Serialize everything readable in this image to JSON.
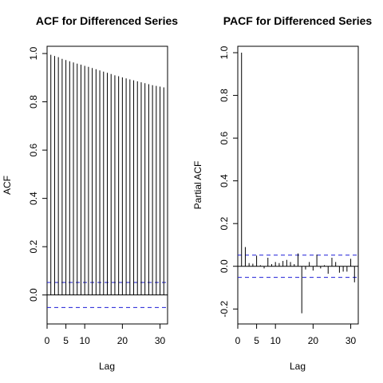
{
  "chart_data": [
    {
      "type": "bar",
      "title": "ACF for Differenced Series",
      "xlabel": "Lag",
      "ylabel": "ACF",
      "xlim": [
        0,
        32
      ],
      "ylim": [
        -0.12,
        1.03
      ],
      "x_ticks": [
        0,
        5,
        10,
        20,
        30
      ],
      "y_ticks": [
        0.0,
        0.2,
        0.4,
        0.6,
        0.8,
        1.0
      ],
      "x_tick_labels": [
        "0",
        "5",
        "10",
        "20",
        "30"
      ],
      "y_tick_labels": [
        "0.0",
        "0.2",
        "0.4",
        "0.6",
        "0.8",
        "1.0"
      ],
      "ci": [
        0.052,
        -0.052
      ],
      "lags": [
        1,
        2,
        3,
        4,
        5,
        6,
        7,
        8,
        9,
        10,
        11,
        12,
        13,
        14,
        15,
        16,
        17,
        18,
        19,
        20,
        21,
        22,
        23,
        24,
        25,
        26,
        27,
        28,
        29,
        30,
        31
      ],
      "values": [
        0.995,
        0.99,
        0.985,
        0.978,
        0.973,
        0.968,
        0.963,
        0.958,
        0.954,
        0.949,
        0.945,
        0.94,
        0.935,
        0.93,
        0.925,
        0.92,
        0.915,
        0.91,
        0.906,
        0.901,
        0.897,
        0.893,
        0.889,
        0.885,
        0.881,
        0.877,
        0.873,
        0.869,
        0.866,
        0.863,
        0.86
      ]
    },
    {
      "type": "bar",
      "title": "PACF for Differenced Series",
      "xlabel": "Lag",
      "ylabel": "Partial ACF",
      "xlim": [
        0,
        32
      ],
      "ylim": [
        -0.27,
        1.03
      ],
      "x_ticks": [
        0,
        5,
        10,
        20,
        30
      ],
      "y_ticks": [
        -0.2,
        0.0,
        0.2,
        0.4,
        0.6,
        0.8,
        1.0
      ],
      "x_tick_labels": [
        "0",
        "5",
        "10",
        "20",
        "30"
      ],
      "y_tick_labels": [
        "-0.2",
        "0.0",
        "0.2",
        "0.4",
        "0.6",
        "0.8",
        "1.0"
      ],
      "ci": [
        0.052,
        -0.052
      ],
      "lags": [
        1,
        2,
        3,
        4,
        5,
        6,
        7,
        8,
        9,
        10,
        11,
        12,
        13,
        14,
        15,
        16,
        17,
        18,
        19,
        20,
        21,
        22,
        23,
        24,
        25,
        26,
        27,
        28,
        29,
        30,
        31
      ],
      "values": [
        1.0,
        0.09,
        0.015,
        0.012,
        0.05,
        0.005,
        -0.01,
        0.04,
        0.01,
        0.02,
        0.015,
        0.025,
        0.03,
        0.02,
        0.01,
        0.06,
        -0.22,
        -0.015,
        0.02,
        -0.02,
        0.055,
        -0.01,
        0.005,
        -0.035,
        0.04,
        0.02,
        -0.03,
        -0.025,
        -0.025,
        0.035,
        -0.075
      ]
    }
  ]
}
